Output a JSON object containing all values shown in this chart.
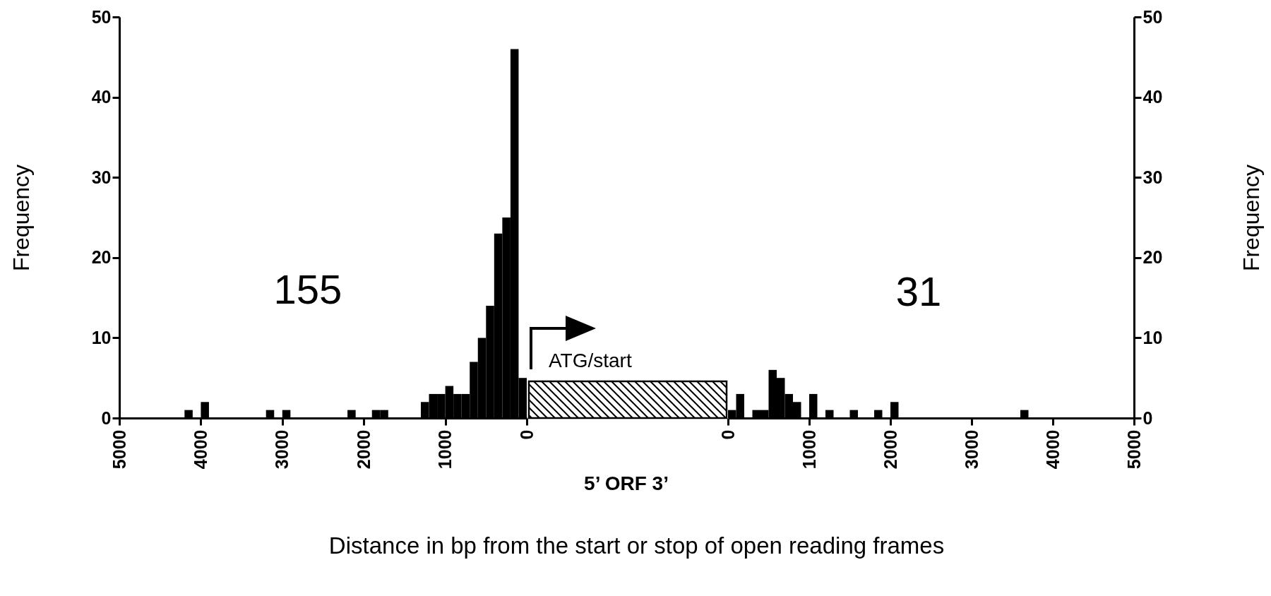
{
  "chart_data": [
    {
      "type": "histogram",
      "xlabel": "Distance in bp from the start or stop of open reading frames",
      "ylabel": "Frequency",
      "bins": [
        4200,
        4100,
        4000,
        3900,
        3800,
        3700,
        3600,
        3500,
        3400,
        3300,
        3200,
        3100,
        3000,
        2900,
        2800,
        2700,
        2600,
        2500,
        2400,
        2300,
        2200,
        2100,
        2000,
        1900,
        1800,
        1700,
        1600,
        1500,
        1400,
        1300,
        1200,
        1100,
        1000,
        900,
        800,
        700,
        600,
        500,
        400,
        300,
        200,
        100,
        0
      ],
      "values": [
        1,
        0,
        2,
        0,
        0,
        0,
        0,
        0,
        0,
        0,
        1,
        0,
        1,
        0,
        0,
        0,
        0,
        0,
        0,
        0,
        1,
        0,
        0,
        1,
        1,
        0,
        0,
        0,
        0,
        2,
        3,
        3,
        4,
        3,
        3,
        7,
        10,
        14,
        23,
        25,
        46,
        5
      ],
      "color": "#000000",
      "xlim": [
        5000,
        0
      ],
      "xticks": [
        5000,
        4000,
        3000,
        2000,
        1000,
        0
      ],
      "ylim": [
        0,
        50
      ],
      "yticks": [
        0,
        10,
        20,
        30,
        40,
        50
      ],
      "annotations": [
        "155",
        "ATG/start",
        "5’ ORF 3’"
      ]
    },
    {
      "type": "histogram",
      "ylabel": "Frequency",
      "bins": [
        0,
        100,
        200,
        300,
        400,
        500,
        600,
        700,
        800,
        900,
        1000,
        1100,
        1200,
        1300,
        1400,
        1500,
        1600,
        1700,
        1800,
        1900,
        2000,
        2100,
        2200,
        2300,
        2400,
        2500,
        2600,
        2700,
        2800,
        2900,
        3000,
        3100,
        3200,
        3300,
        3400,
        3500,
        3600,
        3700
      ],
      "values": [
        1,
        3,
        0,
        1,
        1,
        6,
        5,
        3,
        2,
        0,
        3,
        0,
        1,
        0,
        0,
        1,
        0,
        0,
        1,
        0,
        2,
        0,
        0,
        0,
        0,
        0,
        0,
        0,
        0,
        0,
        0,
        0,
        0,
        0,
        0,
        0,
        1
      ],
      "color": "#000000",
      "xlim": [
        0,
        5000
      ],
      "xticks": [
        0,
        1000,
        2000,
        3000,
        4000,
        5000
      ],
      "ylim": [
        0,
        50
      ],
      "yticks": [
        0,
        10,
        20,
        30,
        40,
        50
      ],
      "annotations": [
        "31"
      ]
    }
  ]
}
